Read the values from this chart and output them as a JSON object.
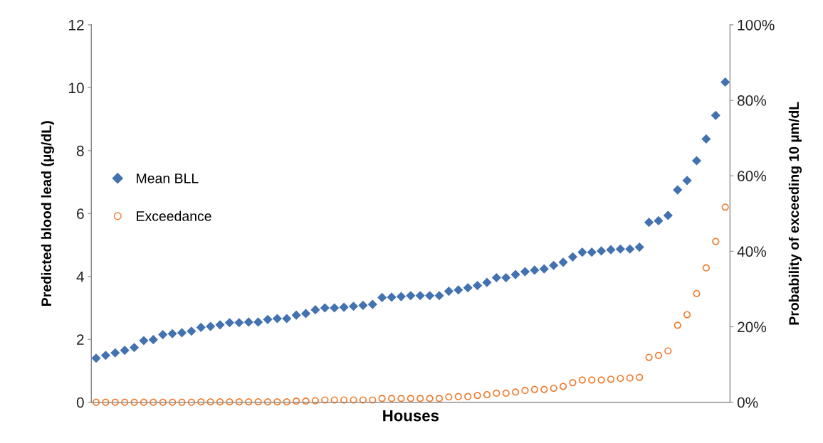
{
  "chart_data": {
    "type": "scatter",
    "xlabel": "Houses",
    "ylabel": "Predicted blood lead (µg/dL)",
    "y2label": "Probability of exceeding 10 µm/dL",
    "categories": [
      null,
      null,
      null,
      null,
      null,
      null,
      null,
      null,
      null,
      null,
      null,
      null,
      null,
      null,
      null,
      null,
      null,
      null,
      null,
      null,
      null,
      null,
      null,
      null,
      null,
      null,
      null,
      null,
      null,
      null,
      null,
      null,
      null,
      null,
      null,
      null,
      null,
      null,
      null,
      null,
      null,
      null,
      null,
      null,
      null,
      null,
      null,
      null,
      null,
      null,
      null,
      null,
      null,
      null,
      null,
      null,
      null,
      null,
      null,
      null,
      null,
      null,
      null,
      null,
      null,
      null,
      null
    ],
    "series": [
      {
        "name": "Mean BLL",
        "color": "#4372b0",
        "marker": "diamond",
        "values": [
          1.4,
          1.49,
          1.57,
          1.65,
          1.74,
          1.96,
          1.99,
          2.15,
          2.18,
          2.21,
          2.26,
          2.38,
          2.41,
          2.46,
          2.53,
          2.53,
          2.55,
          2.55,
          2.63,
          2.66,
          2.66,
          2.77,
          2.82,
          2.94,
          3.0,
          3.0,
          3.02,
          3.05,
          3.08,
          3.11,
          3.33,
          3.34,
          3.36,
          3.39,
          3.39,
          3.39,
          3.39,
          3.53,
          3.57,
          3.64,
          3.71,
          3.81,
          3.96,
          3.96,
          4.06,
          4.15,
          4.2,
          4.24,
          4.35,
          4.45,
          4.62,
          4.77,
          4.77,
          4.81,
          4.85,
          4.87,
          4.87,
          4.93,
          5.72,
          5.77,
          5.94,
          6.75,
          7.05,
          7.68,
          8.37,
          9.12,
          10.18
        ]
      },
      {
        "name": "Exceedance",
        "color": "#ed7d31",
        "marker": "circle",
        "axis": "y2",
        "values": [
          0,
          0,
          0,
          0,
          0,
          0,
          0,
          0,
          0,
          0,
          0,
          0.1,
          0.1,
          0.1,
          0.1,
          0.1,
          0.1,
          0.1,
          0.1,
          0.1,
          0.1,
          0.3,
          0.3,
          0.4,
          0.6,
          0.6,
          0.6,
          0.6,
          0.6,
          0.6,
          1.0,
          1.0,
          1.0,
          1.0,
          1.0,
          1.0,
          1.0,
          1.4,
          1.5,
          1.5,
          1.8,
          2.0,
          2.4,
          2.4,
          2.7,
          3.1,
          3.4,
          3.4,
          3.7,
          4.2,
          5.2,
          5.9,
          5.9,
          5.9,
          6.1,
          6.3,
          6.4,
          6.6,
          11.9,
          12.4,
          13.6,
          20.4,
          23.2,
          28.8,
          35.6,
          42.6,
          51.7
        ]
      }
    ],
    "ylim": [
      0,
      12
    ],
    "yticks": [
      0,
      2,
      4,
      6,
      8,
      10,
      12
    ],
    "y2lim": [
      0,
      100
    ],
    "y2ticks": [
      {
        "value": 0,
        "label": "0%"
      },
      {
        "value": 20,
        "label": "20%"
      },
      {
        "value": 40,
        "label": "40%"
      },
      {
        "value": 60,
        "label": "60%"
      },
      {
        "value": 80,
        "label": "80%"
      },
      {
        "value": 100,
        "label": "100%"
      }
    ],
    "legend": "center left",
    "grid": false
  }
}
